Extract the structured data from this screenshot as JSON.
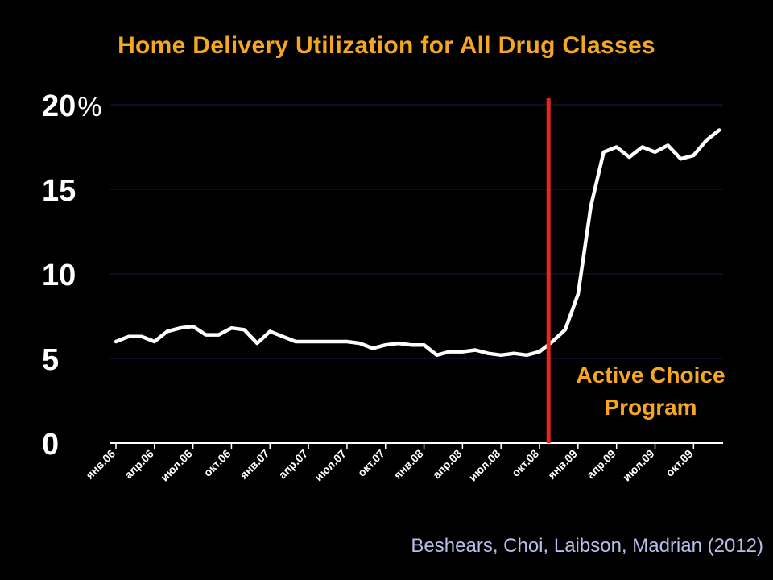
{
  "title": "Home Delivery Utilization for All Drug Classes",
  "citation": "Beshears, Choi, Laibson, Madrian (2012)",
  "colors": {
    "background": "#000000",
    "title": "#F5A623",
    "line": "#FFFFFF",
    "marker": "#E8261E",
    "annotation": "#F5A623",
    "grid": "#1C1C3A",
    "citation": "#B8BEE8"
  },
  "chart_data": {
    "type": "line",
    "title": "Home Delivery Utilization for All Drug Classes",
    "xlabel": "",
    "ylabel": "",
    "y_unit": "%",
    "ylim": [
      0,
      20
    ],
    "y_ticks": [
      "0",
      "5",
      "10",
      "15",
      "20"
    ],
    "grid": true,
    "x_tick_labels": [
      "янв.06",
      "апр.06",
      "июл.06",
      "окт.06",
      "янв.07",
      "апр.07",
      "июл.07",
      "окт.07",
      "янв.08",
      "апр.08",
      "июл.08",
      "окт.08",
      "янв.09",
      "апр.09",
      "июл.09",
      "окт.09"
    ],
    "x_tick_month_index": [
      0,
      3,
      6,
      9,
      12,
      15,
      18,
      21,
      24,
      27,
      30,
      33,
      36,
      39,
      42,
      45
    ],
    "x_range_months": [
      -0.5,
      47.3
    ],
    "series": [
      {
        "name": "",
        "x_start": "янв.06",
        "values": [
          6.0,
          6.3,
          6.3,
          6.0,
          6.6,
          6.8,
          6.9,
          6.4,
          6.4,
          6.8,
          6.7,
          5.9,
          6.6,
          6.3,
          6.0,
          6.0,
          6.0,
          6.0,
          6.0,
          5.9,
          5.6,
          5.8,
          5.9,
          5.8,
          5.8,
          5.2,
          5.4,
          5.4,
          5.5,
          5.3,
          5.2,
          5.3,
          5.2,
          5.4,
          6.0,
          6.7,
          8.8,
          14.0,
          17.2,
          17.5,
          16.9,
          17.5,
          17.2,
          17.6,
          16.8,
          17.0,
          17.9,
          18.5
        ]
      }
    ],
    "annotations": [
      {
        "text_lines": [
          "Active Choice",
          "Program"
        ],
        "marker_month_index": 33.7
      }
    ]
  }
}
